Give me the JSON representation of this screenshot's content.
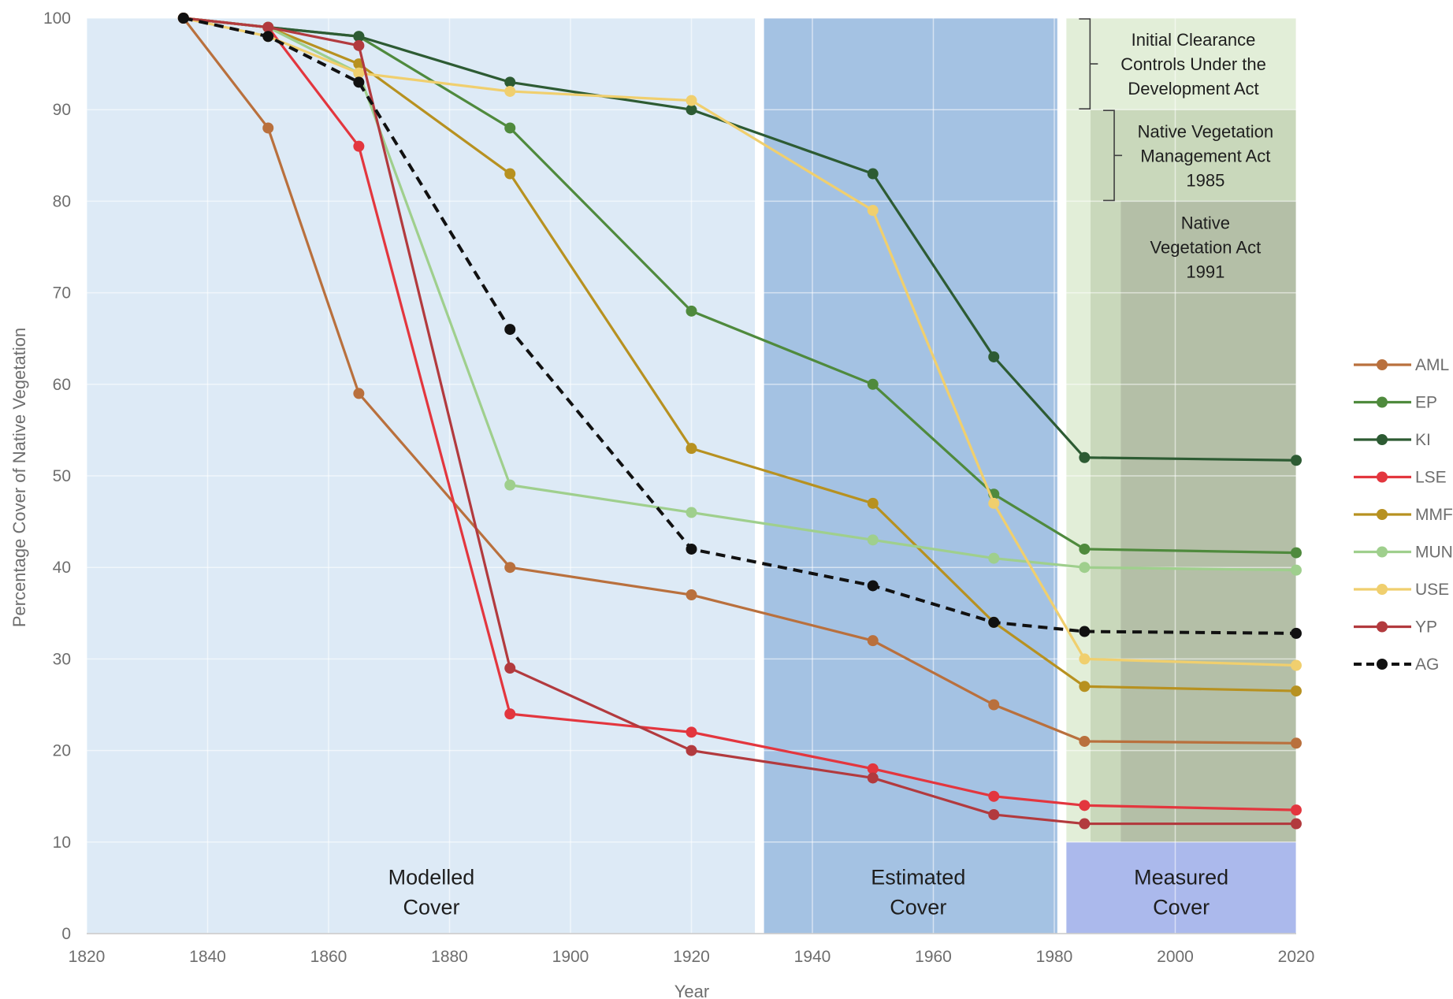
{
  "chart_data": {
    "type": "line",
    "title": "",
    "xlabel": "Year",
    "ylabel": "Percentage Cover of Native Vegetation",
    "xlim": [
      1820,
      2020
    ],
    "ylim": [
      0,
      100
    ],
    "xticks": [
      "1820",
      "1840",
      "1860",
      "1880",
      "1900",
      "1920",
      "1940",
      "1960",
      "1980",
      "2000",
      "2020"
    ],
    "yticks": [
      "0",
      "10",
      "20",
      "30",
      "40",
      "50",
      "60",
      "70",
      "80",
      "90",
      "100"
    ],
    "grid": true,
    "legend_position": "right",
    "background_zones": [
      {
        "x0": 1820,
        "x1": 1930.5,
        "y0": 0,
        "y1": 100,
        "color": "#ddeaf6"
      },
      {
        "x0": 1932,
        "x1": 1980.5,
        "y0": 0,
        "y1": 100,
        "color": "#a4c2e3"
      },
      {
        "x0": 1982,
        "x1": 2020,
        "y0": 0,
        "y1": 10,
        "color": "#abb9ec"
      },
      {
        "x0": 1982,
        "x1": 2020,
        "y0": 10,
        "y1": 100,
        "color": "#e2eed8"
      },
      {
        "x0": 1986,
        "x1": 2020,
        "y0": 10,
        "y1": 90,
        "color": "#c9d8bb"
      },
      {
        "x0": 1991,
        "x1": 2020,
        "y0": 10,
        "y1": 80,
        "color": "#b4bfa7"
      }
    ],
    "zone_labels": [
      {
        "lines": [
          "Modelled",
          "Cover"
        ],
        "x": 1877,
        "y": 4
      },
      {
        "lines": [
          "Estimated",
          "Cover"
        ],
        "x": 1957.5,
        "y": 4
      },
      {
        "lines": [
          "Measured",
          "Cover"
        ],
        "x": 2001,
        "y": 4
      }
    ],
    "annotations": [
      {
        "lines": [
          "Initial Clearance",
          "Controls Under the",
          "Development Act"
        ],
        "x": 2003,
        "y": 95,
        "bracket": [
          90,
          100
        ],
        "bracket_x": 1982
      },
      {
        "lines": [
          "Native Vegetation",
          "Management Act",
          "1985"
        ],
        "x": 2005,
        "y": 85,
        "bracket": [
          80,
          90
        ],
        "bracket_x": 1986
      },
      {
        "lines": [
          "Native",
          "Vegetation Act",
          "1991"
        ],
        "x": 2005,
        "y": 75,
        "bracket": null,
        "bracket_x": null
      }
    ],
    "x": [
      1836,
      1850,
      1865,
      1890,
      1920,
      1950,
      1970,
      1985,
      2020
    ],
    "series": [
      {
        "name": "AML",
        "color": "#b9703d",
        "dashed": false,
        "values": [
          100,
          88,
          59,
          40,
          37,
          32,
          25,
          21,
          20.8
        ]
      },
      {
        "name": "EP",
        "color": "#4f8a3d",
        "dashed": false,
        "values": [
          100,
          99,
          98,
          88,
          68,
          60,
          48,
          42,
          41.6
        ]
      },
      {
        "name": "KI",
        "color": "#2d5b33",
        "dashed": false,
        "values": [
          100,
          99,
          98,
          93,
          90,
          83,
          63,
          52,
          51.7
        ]
      },
      {
        "name": "LSE",
        "color": "#e3363e",
        "dashed": false,
        "values": [
          100,
          99,
          86,
          24,
          22,
          18,
          15,
          14,
          13.5
        ]
      },
      {
        "name": "MMF",
        "color": "#b79120",
        "dashed": false,
        "values": [
          100,
          99,
          95,
          83,
          53,
          47,
          34,
          27,
          26.5
        ]
      },
      {
        "name": "MUN",
        "color": "#9fcf8d",
        "dashed": false,
        "values": [
          100,
          99,
          94,
          49,
          46,
          43,
          41,
          40,
          39.7
        ]
      },
      {
        "name": "USE",
        "color": "#f0cf6e",
        "dashed": false,
        "values": [
          100,
          98,
          94,
          92,
          91,
          79,
          47,
          30,
          29.3
        ]
      },
      {
        "name": "YP",
        "color": "#b23a3e",
        "dashed": false,
        "values": [
          100,
          99,
          97,
          29,
          20,
          17,
          13,
          12,
          12.0
        ]
      },
      {
        "name": "AG",
        "color": "#111111",
        "dashed": true,
        "values": [
          100,
          98,
          93,
          66,
          42,
          38,
          34,
          33,
          32.8
        ]
      }
    ]
  }
}
